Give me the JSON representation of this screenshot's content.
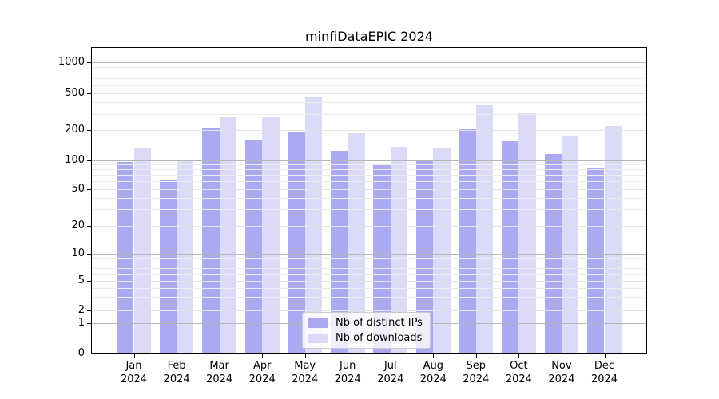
{
  "chart_data": {
    "type": "bar",
    "title": "minfiDataEPIC 2024",
    "categories": [
      "Jan",
      "Feb",
      "Mar",
      "Apr",
      "May",
      "Jun",
      "Jul",
      "Aug",
      "Sep",
      "Oct",
      "Nov",
      "Dec"
    ],
    "year": "2024",
    "series": [
      {
        "name": "Nb of distinct IPs",
        "color": "#aaaaf3",
        "values": [
          95,
          61,
          210,
          158,
          192,
          124,
          90,
          98,
          206,
          156,
          116,
          84
        ]
      },
      {
        "name": "Nb of downloads",
        "color": "#dbdbf8",
        "values": [
          135,
          98,
          282,
          276,
          461,
          188,
          136,
          134,
          372,
          306,
          174,
          223
        ]
      }
    ],
    "xlabel": "",
    "ylabel": "",
    "yscale": "symlog",
    "ylim": [
      0,
      1440
    ],
    "y_ticks": [
      0,
      1,
      2,
      5,
      10,
      20,
      50,
      100,
      200,
      500,
      1000
    ],
    "y_major_gridlines": [
      1,
      10,
      100,
      1000
    ],
    "y_mid_gridlines": [
      2,
      5,
      20,
      50,
      200,
      500
    ],
    "y_minor_gridlines": [
      3,
      4,
      6,
      7,
      8,
      9,
      30,
      40,
      60,
      70,
      80,
      90,
      300,
      400,
      600,
      700,
      800,
      900
    ],
    "grid": "horizontal, major+minor, drawn above bars",
    "legend": {
      "position": "lower center",
      "items": [
        {
          "label": "Nb of distinct IPs",
          "color": "#aaaaf3"
        },
        {
          "label": "Nb of downloads",
          "color": "#dbdbf8"
        }
      ]
    },
    "colors": {
      "background": "#ffffff",
      "axis": "#000000",
      "grid_major": "#b6b6b6",
      "grid_mid": "#e2e2e2",
      "grid_minor": "#ececec",
      "legend_border": "#cccccc"
    }
  }
}
